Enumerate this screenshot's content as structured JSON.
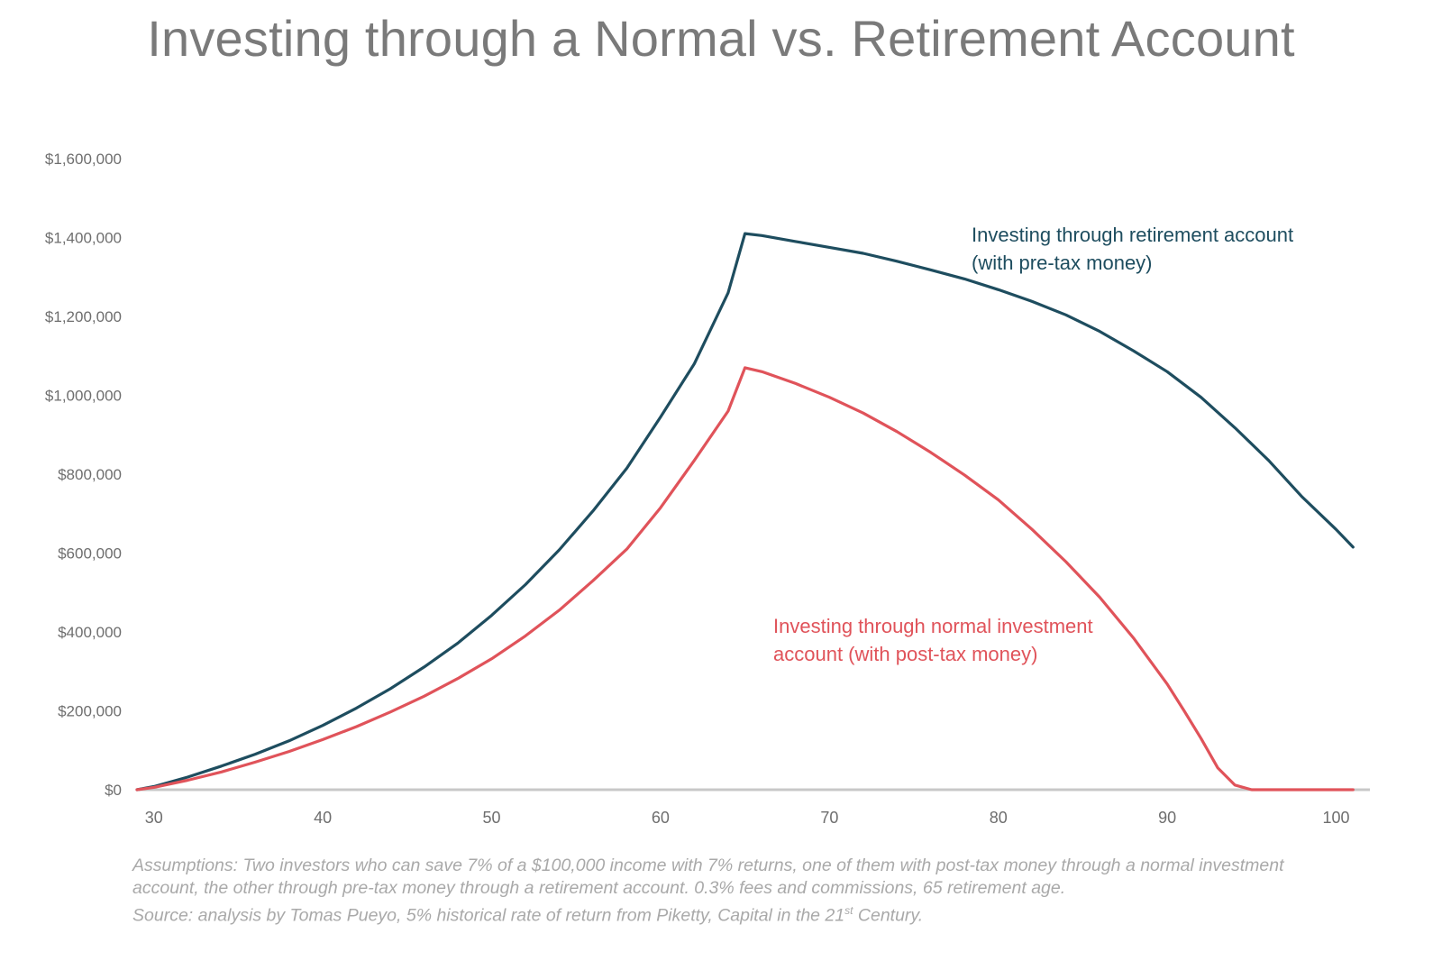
{
  "title": "Investing through a Normal vs. Retirement Account",
  "colors": {
    "retirement": "#1e4d5f",
    "normal": "#e0535a",
    "axis": "#c8c8c8",
    "tick_text": "#6e6e6e",
    "title": "#7a7a7a",
    "footnote": "#a9a9a9"
  },
  "chart_data": {
    "type": "line",
    "title": "Investing through a Normal vs. Retirement Account",
    "xlabel": "",
    "ylabel": "",
    "xlim": [
      29,
      102
    ],
    "ylim": [
      0,
      1600000
    ],
    "grid": false,
    "x_ticks": [
      "30",
      "40",
      "50",
      "60",
      "70",
      "80",
      "90",
      "100"
    ],
    "y_ticks": [
      "$0",
      "$200,000",
      "$400,000",
      "$600,000",
      "$800,000",
      "$1,000,000",
      "$1,200,000",
      "$1,400,000",
      "$1,600,000"
    ],
    "series": [
      {
        "name": "Investing through retirement account (with pre-tax money)",
        "name_lines": [
          "Investing through retirement account",
          "(with pre-tax money)"
        ],
        "color": "#1e4d5f",
        "x": [
          29,
          30,
          32,
          34,
          36,
          38,
          40,
          42,
          44,
          46,
          48,
          50,
          52,
          54,
          56,
          58,
          60,
          62,
          64,
          65,
          66,
          68,
          70,
          72,
          74,
          76,
          78,
          80,
          82,
          84,
          86,
          88,
          90,
          92,
          94,
          96,
          98,
          100,
          101
        ],
        "y": [
          0,
          8000,
          32000,
          60000,
          90000,
          124000,
          163000,
          207000,
          256000,
          311000,
          372000,
          442000,
          520000,
          608000,
          707000,
          815000,
          945000,
          1080000,
          1260000,
          1410000,
          1405000,
          1390000,
          1375000,
          1360000,
          1340000,
          1318000,
          1295000,
          1268000,
          1238000,
          1204000,
          1162000,
          1113000,
          1060000,
          995000,
          918000,
          835000,
          742000,
          660000,
          615000
        ]
      },
      {
        "name": "Investing through normal investment account (with post-tax money)",
        "name_lines": [
          "Investing through normal investment",
          "account (with post-tax money)"
        ],
        "color": "#e0535a",
        "x": [
          29,
          30,
          32,
          34,
          36,
          38,
          40,
          42,
          44,
          46,
          48,
          50,
          52,
          54,
          56,
          58,
          60,
          62,
          64,
          65,
          66,
          68,
          70,
          72,
          74,
          76,
          78,
          80,
          82,
          84,
          86,
          88,
          90,
          91,
          92,
          93,
          94,
          95,
          96,
          98,
          100,
          101
        ],
        "y": [
          0,
          6000,
          24000,
          45000,
          70000,
          97000,
          127000,
          160000,
          197000,
          237000,
          282000,
          332000,
          390000,
          455000,
          530000,
          610000,
          715000,
          835000,
          960000,
          1070000,
          1060000,
          1030000,
          995000,
          955000,
          908000,
          855000,
          798000,
          735000,
          660000,
          578000,
          488000,
          385000,
          268000,
          200000,
          130000,
          55000,
          12000,
          0,
          0,
          0,
          0,
          0
        ]
      }
    ]
  },
  "footnote": {
    "line1": "Assumptions: Two investors who can save 7% of a $100,000 income with 7% returns, one of them with post-tax money through a normal investment",
    "line2": "account, the other through pre-tax money through a retirement account. 0.3% fees and commissions, 65 retirement age.",
    "line3_prefix": "Source: analysis by Tomas Pueyo, 5% historical rate of return from Piketty, Capital in the 21",
    "line3_sup": "st",
    "line3_suffix": " Century."
  }
}
